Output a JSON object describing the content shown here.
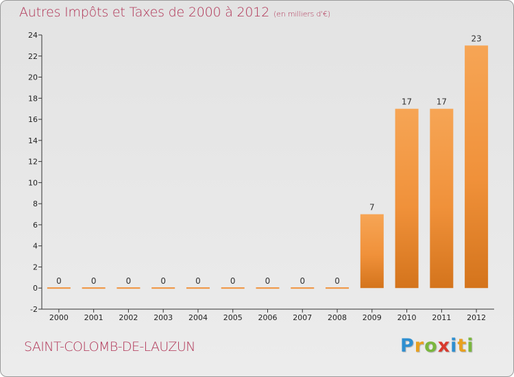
{
  "chart_data": {
    "type": "bar",
    "title": "Autres Impôts et Taxes de 2000 à 2012",
    "unit": "(en milliers d'€)",
    "categories": [
      "2000",
      "2001",
      "2002",
      "2003",
      "2004",
      "2005",
      "2006",
      "2007",
      "2008",
      "2009",
      "2010",
      "2011",
      "2012"
    ],
    "values": [
      0,
      0,
      0,
      0,
      0,
      0,
      0,
      0,
      0,
      7,
      17,
      17,
      23
    ],
    "ylim": [
      -2,
      24
    ],
    "yticks": [
      -2,
      0,
      2,
      4,
      6,
      8,
      10,
      12,
      14,
      16,
      18,
      20,
      22,
      24
    ],
    "grid": false,
    "bar_color": "#f0913a",
    "bar_color_top": "#f6a555",
    "bar_color_bottom": "#d4741c"
  },
  "commune": "SAINT-COLOMB-DE-LAUZUN",
  "logo": {
    "letters": [
      {
        "char": "P",
        "color": "#2f8fd0"
      },
      {
        "char": "r",
        "color": "#e8a020"
      },
      {
        "char": "o",
        "color": "#7ab63e"
      },
      {
        "char": "x",
        "color": "#d83a2e"
      },
      {
        "char": "i",
        "color": "#2f8fd0"
      },
      {
        "char": "t",
        "color": "#e8a020"
      },
      {
        "char": "i",
        "color": "#7ab63e"
      }
    ]
  }
}
